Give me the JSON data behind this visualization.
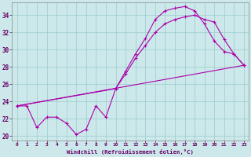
{
  "bg_color": "#cce8ea",
  "line_color": "#aa00aa",
  "grid_color": "#99cccc",
  "xlabel": "Windchill (Refroidissement éolien,°C)",
  "xlabel_color": "#660066",
  "tick_color": "#660066",
  "xlim": [
    -0.5,
    23.5
  ],
  "ylim": [
    19.5,
    35.5
  ],
  "yticks": [
    20,
    22,
    24,
    26,
    28,
    30,
    32,
    34
  ],
  "xticks": [
    0,
    1,
    2,
    3,
    4,
    5,
    6,
    7,
    8,
    9,
    10,
    11,
    12,
    13,
    14,
    15,
    16,
    17,
    18,
    19,
    20,
    21,
    22,
    23
  ],
  "curve1_x": [
    0,
    1,
    2,
    3,
    4,
    5,
    6,
    7,
    8,
    9,
    10,
    11,
    12,
    13,
    14,
    15,
    16,
    17,
    18,
    19,
    20,
    21,
    22,
    23
  ],
  "curve1_y": [
    23.5,
    23.5,
    21.0,
    22.2,
    22.2,
    21.5,
    20.2,
    20.8,
    23.5,
    22.2,
    25.5,
    27.5,
    29.5,
    31.3,
    33.5,
    34.5,
    34.8,
    35.0,
    34.5,
    33.0,
    31.0,
    29.8,
    29.5,
    28.2
  ],
  "curve2_x": [
    0,
    10,
    11,
    12,
    13,
    14,
    15,
    16,
    17,
    18,
    19,
    20,
    21,
    22,
    23
  ],
  "curve2_y": [
    23.5,
    25.5,
    27.2,
    29.0,
    30.5,
    32.0,
    33.0,
    33.5,
    33.8,
    34.0,
    33.5,
    33.2,
    31.2,
    29.5,
    28.2
  ],
  "curve3_x": [
    0,
    23
  ],
  "curve3_y": [
    23.5,
    28.2
  ]
}
